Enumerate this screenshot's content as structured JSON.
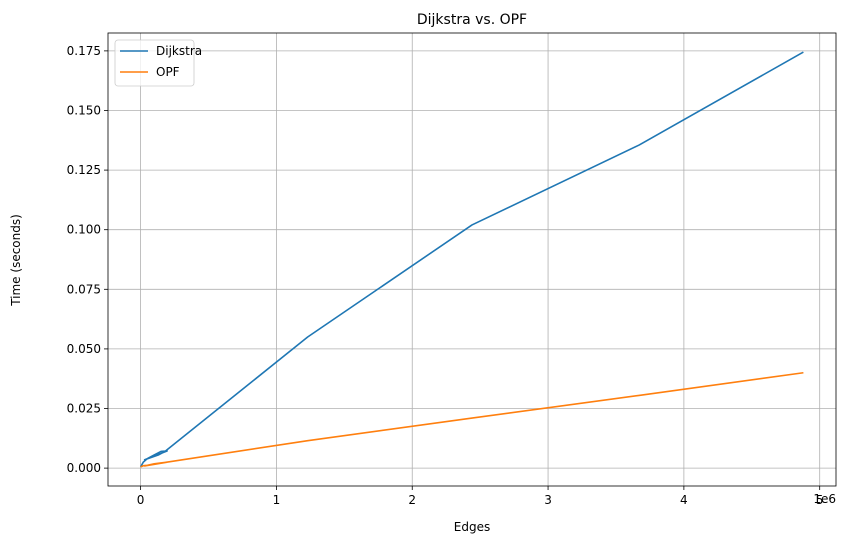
{
  "chart_data": {
    "type": "line",
    "title": "Dijkstra vs. OPF",
    "xlabel": "Edges",
    "ylabel": "Time (seconds)",
    "x_offset_label": "1e6",
    "x_scale": 1000000,
    "xlim": [
      -240000,
      5120000
    ],
    "ylim": [
      -0.0075,
      0.1825
    ],
    "xticks": [
      0,
      1000000,
      2000000,
      3000000,
      4000000,
      5000000
    ],
    "xtick_labels": [
      "0",
      "1",
      "2",
      "3",
      "4",
      "5"
    ],
    "yticks": [
      0.0,
      0.025,
      0.05,
      0.075,
      0.1,
      0.125,
      0.15,
      0.175
    ],
    "ytick_labels": [
      "0.000",
      "0.025",
      "0.050",
      "0.075",
      "0.100",
      "0.125",
      "0.150",
      "0.175"
    ],
    "grid": true,
    "legend_position": "top-left",
    "series": [
      {
        "name": "Dijkstra",
        "color": "#1f77b4",
        "x": [
          0,
          20000,
          50000,
          100000,
          150000,
          195000,
          30000,
          80000,
          130000,
          180000,
          1230000,
          2440000,
          3670000,
          4880000
        ],
        "y": [
          0.0005,
          0.0025,
          0.004,
          0.0055,
          0.007,
          0.0072,
          0.0035,
          0.0045,
          0.0055,
          0.007,
          0.055,
          0.102,
          0.1355,
          0.1745
        ]
      },
      {
        "name": "OPF",
        "color": "#ff7f0e",
        "x": [
          0,
          20000,
          50000,
          100000,
          150000,
          195000,
          30000,
          80000,
          130000,
          180000,
          1230000,
          2440000,
          3670000,
          4880000
        ],
        "y": [
          0.0005,
          0.001,
          0.0012,
          0.0018,
          0.0022,
          0.0025,
          0.0009,
          0.0015,
          0.002,
          0.0024,
          0.0115,
          0.021,
          0.0305,
          0.04
        ]
      }
    ]
  }
}
